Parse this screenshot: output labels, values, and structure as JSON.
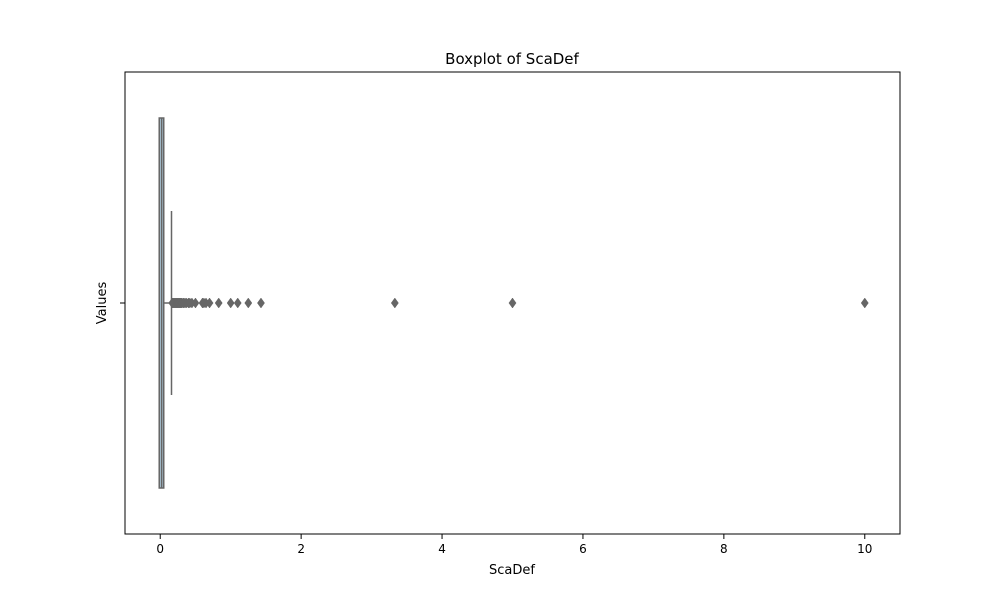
{
  "chart_data": {
    "type": "boxplot",
    "orientation": "horizontal",
    "title": "Boxplot of ScaDef",
    "xlabel": "ScaDef",
    "ylabel": "Values",
    "xlim": [
      -0.5,
      10.5
    ],
    "xticks": [
      0,
      2,
      4,
      6,
      8,
      10
    ],
    "y_category_tick": "",
    "grid": false,
    "box": {
      "whisker_low": 0.0,
      "q1": 0.0,
      "median": 0.02,
      "q3": 0.05,
      "whisker_high": 0.16,
      "fill_color": "#a9c3d3",
      "line_color": "#666666"
    },
    "outliers": [
      0.17,
      0.18,
      0.19,
      0.2,
      0.21,
      0.22,
      0.23,
      0.24,
      0.25,
      0.26,
      0.27,
      0.28,
      0.29,
      0.3,
      0.31,
      0.33,
      0.35,
      0.37,
      0.4,
      0.42,
      0.45,
      0.5,
      0.6,
      0.62,
      0.65,
      0.7,
      0.83,
      1.0,
      1.1,
      1.25,
      1.43,
      3.33,
      5.0,
      10.0
    ],
    "outlier_color": "#666666"
  }
}
